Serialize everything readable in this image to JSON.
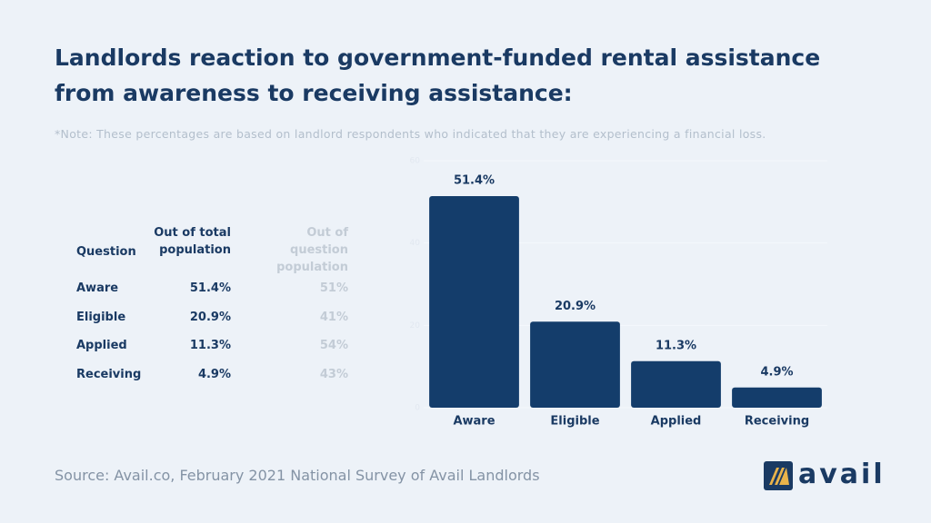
{
  "title": "Landlords reaction to government-funded rental assistance from awareness to receiving assistance:",
  "note": "*Note: These percentages are based on landlord respondents who indicated that they are experiencing a financial loss.",
  "table": {
    "header": [
      "Question",
      "Out of total population",
      "Out of question population"
    ],
    "rows": [
      [
        "Aware",
        "51.4%",
        "51%"
      ],
      [
        "Eligible",
        "20.9%",
        "41%"
      ],
      [
        "Applied",
        "11.3%",
        "54%"
      ],
      [
        "Receiving",
        "4.9%",
        "43%"
      ]
    ]
  },
  "chart_data": {
    "type": "bar",
    "categories": [
      "Aware",
      "Eligible",
      "Applied",
      "Receiving"
    ],
    "values": [
      51.4,
      20.9,
      11.3,
      4.9
    ],
    "value_labels": [
      "51.4%",
      "20.9%",
      "11.3%",
      "4.9%"
    ],
    "color": "#143d6b",
    "ylim": [
      0,
      60
    ],
    "yticks": [
      0,
      20,
      40,
      60
    ],
    "grid": true
  },
  "source": "Source: Avail.co, February 2021 National Survey of Avail Landlords",
  "logo": "avail"
}
